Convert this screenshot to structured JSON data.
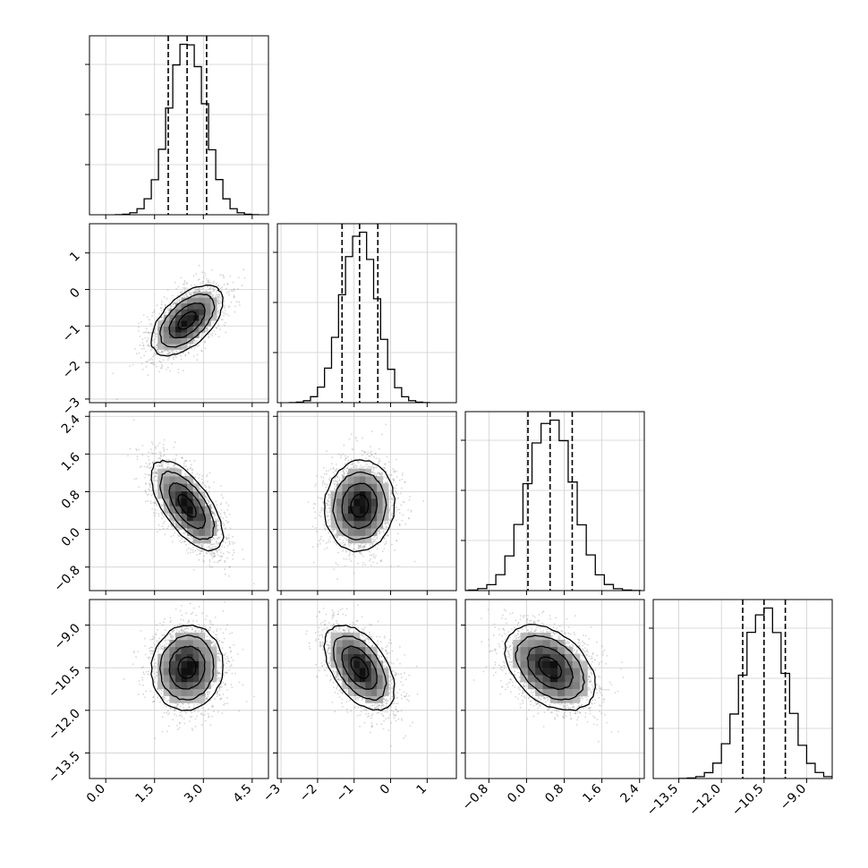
{
  "chart_data": {
    "type": "corner",
    "grid": true,
    "parameters": [
      {
        "index": 0,
        "range": [
          -0.5,
          5.0
        ],
        "ticks": [
          "0.0",
          "1.5",
          "3.0",
          "4.5"
        ],
        "tick_values": [
          0.0,
          1.5,
          3.0,
          4.5
        ],
        "mean": 2.5,
        "sd": 0.55,
        "quantiles": [
          1.92,
          2.5,
          3.1
        ]
      },
      {
        "index": 1,
        "range": [
          -3.1,
          1.8
        ],
        "ticks": [
          "−3",
          "−2",
          "−1",
          "0",
          "1"
        ],
        "tick_values": [
          -3,
          -2,
          -1,
          0,
          1
        ],
        "mean": -0.85,
        "sd": 0.48,
        "quantiles": [
          -1.33,
          -0.85,
          -0.35
        ]
      },
      {
        "index": 2,
        "range": [
          -1.3,
          2.5
        ],
        "ticks": [
          "−0.8",
          "0.0",
          "0.8",
          "1.6",
          "2.4"
        ],
        "tick_values": [
          -0.8,
          0.0,
          0.8,
          1.6,
          2.4
        ],
        "mean": 0.5,
        "sd": 0.48,
        "quantiles": [
          0.03,
          0.5,
          0.97
        ]
      },
      {
        "index": 3,
        "range": [
          -14.4,
          -8.1
        ],
        "ticks": [
          "−13.5",
          "−12.0",
          "−10.5",
          "−9.0"
        ],
        "tick_values": [
          -13.5,
          -12.0,
          -10.5,
          -9.0
        ],
        "mean": -10.5,
        "sd": 0.75,
        "quantiles": [
          -11.25,
          -10.5,
          -9.75
        ]
      }
    ],
    "correlations": [
      {
        "x": 0,
        "y": 1,
        "rho": 0.55
      },
      {
        "x": 0,
        "y": 2,
        "rho": -0.65
      },
      {
        "x": 0,
        "y": 3,
        "rho": 0.05
      },
      {
        "x": 1,
        "y": 2,
        "rho": 0.05
      },
      {
        "x": 1,
        "y": 3,
        "rho": -0.5
      },
      {
        "x": 2,
        "y": 3,
        "rho": -0.4
      }
    ]
  }
}
